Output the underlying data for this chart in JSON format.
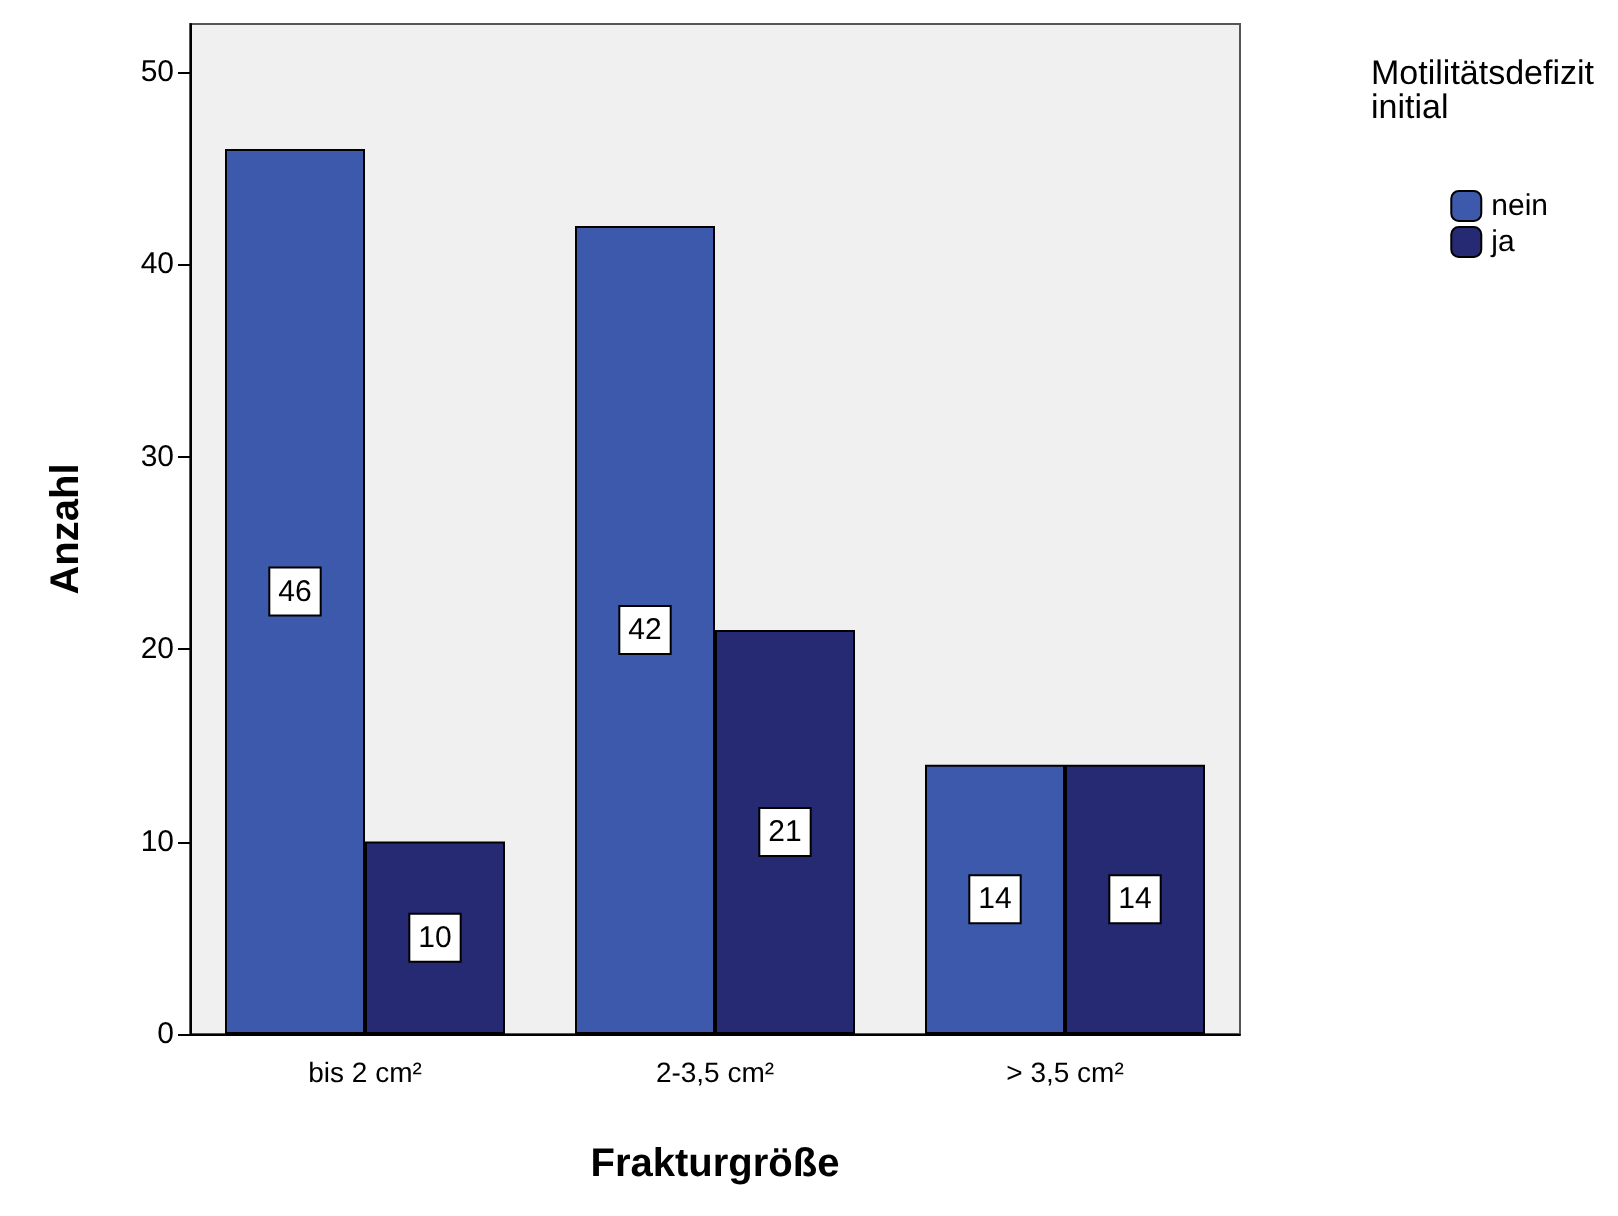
{
  "chart_data": {
    "type": "bar",
    "xlabel": "Frakturgröße",
    "ylabel": "Anzahl",
    "legend_title": "Motilitätsdefizit\ninitial",
    "categories": [
      "bis 2 cm²",
      "2-3,5 cm²",
      "> 3,5 cm²"
    ],
    "series": [
      {
        "name": "nein",
        "color": "#3d59ab",
        "values": [
          46,
          42,
          14
        ]
      },
      {
        "name": "ja",
        "color": "#262a72",
        "values": [
          10,
          21,
          14
        ]
      }
    ],
    "ylim": [
      0,
      52.5
    ],
    "yticks": [
      0,
      10,
      20,
      30,
      40,
      50
    ],
    "grid": false,
    "legend": "right",
    "data_labels": true
  }
}
